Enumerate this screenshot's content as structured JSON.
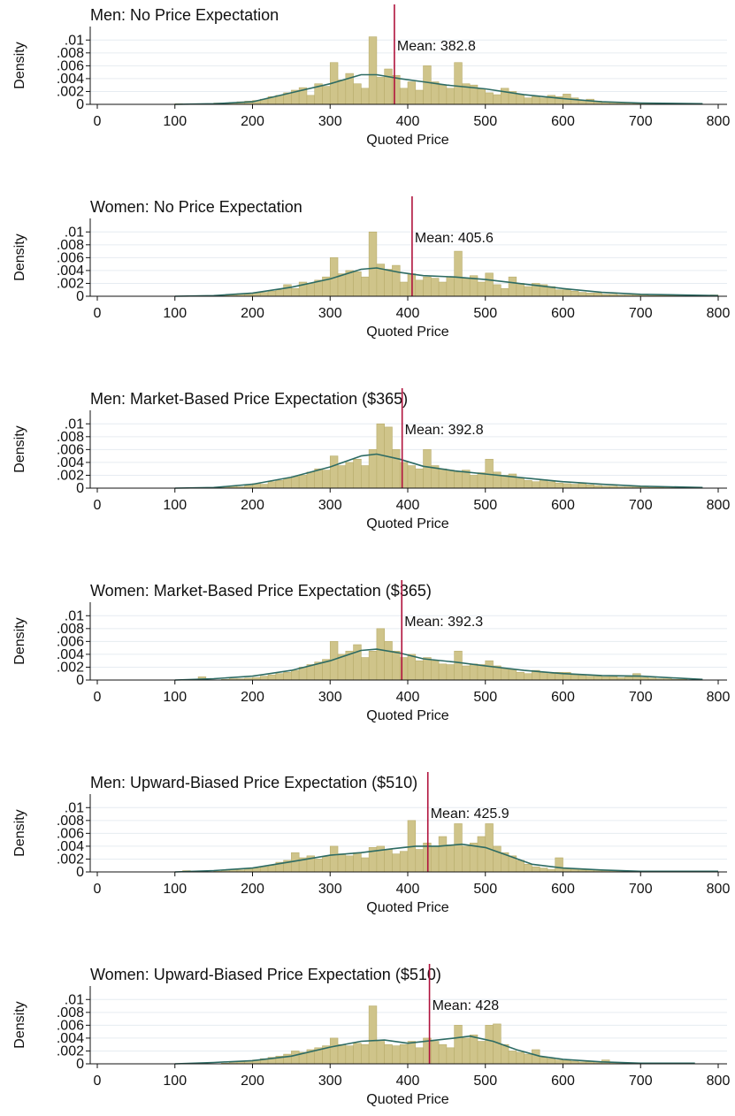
{
  "colors": {
    "bar_fill": "#cfc48a",
    "bar_stroke": "#b9ad6c",
    "density_line": "#2d6b63",
    "mean_line": "#b0123c",
    "grid": "#e6ecf1",
    "axis": "#111111"
  },
  "chart_data": [
    {
      "type": "histogram",
      "title": "Men: No Price Expectation",
      "xlabel": "Quoted Price",
      "ylabel": "Density",
      "xlim": [
        0,
        800
      ],
      "ylim": [
        0,
        0.011
      ],
      "xticks": [
        0,
        100,
        200,
        300,
        400,
        500,
        600,
        700,
        800
      ],
      "xtick_labels": [
        "0",
        "100",
        "200",
        "300",
        "400",
        "500",
        "600",
        "700",
        "800"
      ],
      "yticks": [
        0,
        0.002,
        0.004,
        0.006,
        0.008,
        0.01
      ],
      "ytick_labels": [
        "0",
        ".002",
        ".004",
        ".006",
        ".008",
        ".01"
      ],
      "mean": 382.8,
      "mean_label": "Mean: 382.8",
      "bin_width": 10,
      "bins_start": 0,
      "density": [
        0,
        0,
        0,
        0,
        0,
        0,
        0,
        0,
        0,
        0,
        0.0001,
        0,
        0.0001,
        0.0001,
        0,
        0.0002,
        0.0001,
        0.0003,
        0.0004,
        0.0005,
        0.0006,
        0.0008,
        0.0012,
        0.0014,
        0.0018,
        0.0022,
        0.0026,
        0.0014,
        0.0032,
        0.0028,
        0.0065,
        0.0038,
        0.0048,
        0.0032,
        0.0025,
        0.0105,
        0.0042,
        0.0055,
        0.0045,
        0.0025,
        0.0035,
        0.0022,
        0.006,
        0.0035,
        0.003,
        0.0025,
        0.0065,
        0.0032,
        0.003,
        0.0024,
        0.0018,
        0.0015,
        0.0025,
        0.002,
        0.0015,
        0.001,
        0.0012,
        0.001,
        0.0014,
        0.0012,
        0.0016,
        0.001,
        0.0006,
        0.0008,
        0.0005,
        0.0003,
        0.0003,
        0.0002,
        0.0002,
        0.0001,
        0.0001,
        0.0001,
        0.0001,
        0.0001,
        0,
        0.0001,
        0,
        0,
        0,
        0
      ],
      "kde": [
        [
          100,
          0
        ],
        [
          150,
          0.0001
        ],
        [
          200,
          0.0004
        ],
        [
          250,
          0.0018
        ],
        [
          300,
          0.0032
        ],
        [
          340,
          0.0046
        ],
        [
          360,
          0.0046
        ],
        [
          390,
          0.004
        ],
        [
          420,
          0.0035
        ],
        [
          450,
          0.003
        ],
        [
          500,
          0.0024
        ],
        [
          550,
          0.0015
        ],
        [
          600,
          0.0009
        ],
        [
          650,
          0.0004
        ],
        [
          700,
          0.0002
        ],
        [
          780,
          0.0001
        ]
      ]
    },
    {
      "type": "histogram",
      "title": "Women: No Price Expectation",
      "xlabel": "Quoted Price",
      "ylabel": "Density",
      "xlim": [
        0,
        800
      ],
      "ylim": [
        0,
        0.011
      ],
      "xticks": [
        0,
        100,
        200,
        300,
        400,
        500,
        600,
        700,
        800
      ],
      "xtick_labels": [
        "0",
        "100",
        "200",
        "300",
        "400",
        "500",
        "600",
        "700",
        "800"
      ],
      "yticks": [
        0,
        0.002,
        0.004,
        0.006,
        0.008,
        0.01
      ],
      "ytick_labels": [
        "0",
        ".002",
        ".004",
        ".006",
        ".008",
        ".01"
      ],
      "mean": 405.6,
      "mean_label": "Mean: 405.6",
      "bin_width": 10,
      "bins_start": 0,
      "density": [
        0,
        0,
        0,
        0,
        0,
        0,
        0,
        0,
        0,
        0,
        0,
        0,
        0,
        0.0001,
        0,
        0,
        0.0001,
        0.0002,
        0.0004,
        0.0003,
        0.0005,
        0.0006,
        0.0008,
        0.001,
        0.0018,
        0.0012,
        0.0022,
        0.002,
        0.0025,
        0.003,
        0.006,
        0.0035,
        0.004,
        0.0038,
        0.003,
        0.01,
        0.005,
        0.0042,
        0.0048,
        0.0022,
        0.0035,
        0.0025,
        0.003,
        0.0028,
        0.0022,
        0.003,
        0.007,
        0.0028,
        0.0032,
        0.0022,
        0.0036,
        0.0018,
        0.0012,
        0.003,
        0.002,
        0.0015,
        0.002,
        0.0018,
        0.0015,
        0.001,
        0.001,
        0.0008,
        0.0006,
        0.0005,
        0.0005,
        0.0003,
        0.0003,
        0.0002,
        0.0002,
        0.0003,
        0.0002,
        0.0001,
        0.0001,
        0.0001,
        0.0001,
        0.0002,
        0,
        0,
        0,
        0.0002
      ],
      "kde": [
        [
          100,
          0
        ],
        [
          150,
          0.0001
        ],
        [
          200,
          0.0005
        ],
        [
          250,
          0.0014
        ],
        [
          300,
          0.0027
        ],
        [
          340,
          0.0042
        ],
        [
          360,
          0.0044
        ],
        [
          390,
          0.0037
        ],
        [
          420,
          0.0032
        ],
        [
          460,
          0.003
        ],
        [
          500,
          0.0026
        ],
        [
          550,
          0.0019
        ],
        [
          600,
          0.0012
        ],
        [
          650,
          0.0006
        ],
        [
          700,
          0.0003
        ],
        [
          800,
          0.0001
        ]
      ]
    },
    {
      "type": "histogram",
      "title": "Men: Market-Based Price Expectation ($365)",
      "xlabel": "Quoted Price",
      "ylabel": "Density",
      "xlim": [
        0,
        800
      ],
      "ylim": [
        0,
        0.011
      ],
      "xticks": [
        0,
        100,
        200,
        300,
        400,
        500,
        600,
        700,
        800
      ],
      "xtick_labels": [
        "0",
        "100",
        "200",
        "300",
        "400",
        "500",
        "600",
        "700",
        "800"
      ],
      "yticks": [
        0,
        0.002,
        0.004,
        0.006,
        0.008,
        0.01
      ],
      "ytick_labels": [
        "0",
        ".002",
        ".004",
        ".006",
        ".008",
        ".01"
      ],
      "mean": 392.8,
      "mean_label": "Mean: 392.8",
      "bin_width": 10,
      "bins_start": 0,
      "density": [
        0,
        0,
        0,
        0,
        0,
        0,
        0,
        0,
        0,
        0,
        0,
        0,
        0.0001,
        0,
        0.0001,
        0.0001,
        0.0002,
        0.0003,
        0.0002,
        0.0004,
        0.0007,
        0.0006,
        0.001,
        0.0012,
        0.0015,
        0.0018,
        0.002,
        0.0025,
        0.003,
        0.0028,
        0.005,
        0.0035,
        0.004,
        0.0045,
        0.0035,
        0.006,
        0.01,
        0.0095,
        0.006,
        0.004,
        0.0035,
        0.003,
        0.006,
        0.0035,
        0.003,
        0.0028,
        0.0025,
        0.0028,
        0.002,
        0.0024,
        0.0045,
        0.0025,
        0.002,
        0.0022,
        0.0015,
        0.0012,
        0.001,
        0.0013,
        0.001,
        0.0008,
        0.0007,
        0.0006,
        0.0008,
        0.0005,
        0.0004,
        0.0003,
        0.0003,
        0.0002,
        0.0002,
        0.0002,
        0.0002,
        0.0001,
        0.0001,
        0.0002,
        0.0001,
        0.0001,
        0,
        0,
        0,
        0
      ],
      "kde": [
        [
          100,
          0
        ],
        [
          150,
          0.0001
        ],
        [
          200,
          0.0006
        ],
        [
          250,
          0.0017
        ],
        [
          300,
          0.0033
        ],
        [
          340,
          0.005
        ],
        [
          360,
          0.0053
        ],
        [
          390,
          0.0045
        ],
        [
          420,
          0.0034
        ],
        [
          460,
          0.0027
        ],
        [
          500,
          0.0022
        ],
        [
          550,
          0.0016
        ],
        [
          600,
          0.001
        ],
        [
          650,
          0.0006
        ],
        [
          700,
          0.0003
        ],
        [
          780,
          0.0001
        ]
      ]
    },
    {
      "type": "histogram",
      "title": "Women: Market-Based Price Expectation ($365)",
      "xlabel": "Quoted Price",
      "ylabel": "Density",
      "xlim": [
        0,
        800
      ],
      "ylim": [
        0,
        0.011
      ],
      "xticks": [
        0,
        100,
        200,
        300,
        400,
        500,
        600,
        700,
        800
      ],
      "xtick_labels": [
        "0",
        "100",
        "200",
        "300",
        "400",
        "500",
        "600",
        "700",
        "800"
      ],
      "yticks": [
        0,
        0.002,
        0.004,
        0.006,
        0.008,
        0.01
      ],
      "ytick_labels": [
        "0",
        ".002",
        ".004",
        ".006",
        ".008",
        ".01"
      ],
      "mean": 392.3,
      "mean_label": "Mean: 392.3",
      "bin_width": 10,
      "bins_start": 0,
      "density": [
        0,
        0,
        0,
        0,
        0,
        0,
        0,
        0,
        0,
        0,
        0,
        0,
        0,
        0.0005,
        0,
        0,
        0.0001,
        0.0002,
        0.0002,
        0.0003,
        0.0004,
        0.0006,
        0.0008,
        0.001,
        0.0012,
        0.0015,
        0.002,
        0.0024,
        0.0028,
        0.0032,
        0.006,
        0.004,
        0.0045,
        0.0055,
        0.0035,
        0.0045,
        0.008,
        0.006,
        0.0045,
        0.0035,
        0.004,
        0.003,
        0.0035,
        0.003,
        0.0025,
        0.0024,
        0.0045,
        0.0022,
        0.0025,
        0.0024,
        0.003,
        0.0022,
        0.0018,
        0.0016,
        0.0012,
        0.001,
        0.0015,
        0.0012,
        0.001,
        0.0012,
        0.0012,
        0.0008,
        0.0007,
        0.0006,
        0.0006,
        0.0005,
        0.0005,
        0.0004,
        0.0005,
        0.001,
        0.0004,
        0.0003,
        0.0002,
        0.0002,
        0.0001,
        0.0001,
        0,
        0,
        0,
        0
      ],
      "kde": [
        [
          100,
          0
        ],
        [
          150,
          0.0002
        ],
        [
          200,
          0.0006
        ],
        [
          250,
          0.0015
        ],
        [
          300,
          0.003
        ],
        [
          340,
          0.0046
        ],
        [
          360,
          0.0048
        ],
        [
          390,
          0.0042
        ],
        [
          420,
          0.0033
        ],
        [
          460,
          0.0028
        ],
        [
          500,
          0.0022
        ],
        [
          550,
          0.0015
        ],
        [
          600,
          0.001
        ],
        [
          650,
          0.0007
        ],
        [
          700,
          0.0006
        ],
        [
          780,
          0.0001
        ]
      ]
    },
    {
      "type": "histogram",
      "title": "Men: Upward-Biased Price Expectation ($510)",
      "xlabel": "Quoted Price",
      "ylabel": "Density",
      "xlim": [
        0,
        800
      ],
      "ylim": [
        0,
        0.011
      ],
      "xticks": [
        0,
        100,
        200,
        300,
        400,
        500,
        600,
        700,
        800
      ],
      "xtick_labels": [
        "0",
        "100",
        "200",
        "300",
        "400",
        "500",
        "600",
        "700",
        "800"
      ],
      "yticks": [
        0,
        0.002,
        0.004,
        0.006,
        0.008,
        0.01
      ],
      "ytick_labels": [
        "0",
        ".002",
        ".004",
        ".006",
        ".008",
        ".01"
      ],
      "mean": 425.9,
      "mean_label": "Mean: 425.9",
      "bin_width": 10,
      "bins_start": 0,
      "density": [
        0,
        0,
        0,
        0,
        0,
        0,
        0,
        0,
        0,
        0,
        0,
        0.0002,
        0,
        0,
        0,
        0.0001,
        0.0002,
        0.0004,
        0.0003,
        0.0005,
        0.0006,
        0.0008,
        0.001,
        0.0015,
        0.0018,
        0.003,
        0.0022,
        0.0025,
        0.002,
        0.0024,
        0.004,
        0.0028,
        0.0025,
        0.003,
        0.0022,
        0.0038,
        0.004,
        0.0035,
        0.0028,
        0.0032,
        0.008,
        0.0035,
        0.0045,
        0.004,
        0.0055,
        0.0042,
        0.0075,
        0.004,
        0.0045,
        0.0055,
        0.0075,
        0.004,
        0.003,
        0.0025,
        0.0018,
        0.0012,
        0.0008,
        0.0006,
        0.0004,
        0.0022,
        0.0005,
        0.0004,
        0.0003,
        0.0003,
        0.0002,
        0.0002,
        0.0002,
        0.0002,
        0.0001,
        0.0001,
        0.0001,
        0.0001,
        0.0001,
        0.0001,
        0.0001,
        0,
        0,
        0,
        0,
        0
      ],
      "kde": [
        [
          100,
          0
        ],
        [
          150,
          0.0002
        ],
        [
          200,
          0.0006
        ],
        [
          250,
          0.0016
        ],
        [
          300,
          0.0026
        ],
        [
          340,
          0.003
        ],
        [
          380,
          0.0036
        ],
        [
          410,
          0.004
        ],
        [
          440,
          0.004
        ],
        [
          470,
          0.0043
        ],
        [
          500,
          0.0038
        ],
        [
          530,
          0.0025
        ],
        [
          560,
          0.0012
        ],
        [
          600,
          0.0006
        ],
        [
          650,
          0.0003
        ],
        [
          700,
          0.0001
        ],
        [
          800,
          0.0001
        ]
      ]
    },
    {
      "type": "histogram",
      "title": "Women: Upward-Biased Price Expectation ($510)",
      "xlabel": "Quoted Price",
      "ylabel": "Density",
      "xlim": [
        0,
        800
      ],
      "ylim": [
        0,
        0.011
      ],
      "xticks": [
        0,
        100,
        200,
        300,
        400,
        500,
        600,
        700,
        800
      ],
      "xtick_labels": [
        "0",
        "100",
        "200",
        "300",
        "400",
        "500",
        "600",
        "700",
        "800"
      ],
      "yticks": [
        0,
        0.002,
        0.004,
        0.006,
        0.008,
        0.01
      ],
      "ytick_labels": [
        "0",
        ".002",
        ".004",
        ".006",
        ".008",
        ".01"
      ],
      "mean": 428,
      "mean_label": "Mean: 428",
      "bin_width": 10,
      "bins_start": 0,
      "density": [
        0,
        0,
        0,
        0,
        0,
        0,
        0,
        0,
        0,
        0,
        0,
        0,
        0,
        0,
        0,
        0,
        0.0001,
        0.0002,
        0.0003,
        0.0004,
        0.0006,
        0.0008,
        0.001,
        0.0012,
        0.0015,
        0.002,
        0.0018,
        0.0022,
        0.0025,
        0.0028,
        0.004,
        0.003,
        0.0028,
        0.0032,
        0.003,
        0.009,
        0.0035,
        0.003,
        0.0028,
        0.003,
        0.0035,
        0.0025,
        0.004,
        0.0035,
        0.003,
        0.0025,
        0.006,
        0.004,
        0.0045,
        0.0035,
        0.006,
        0.0062,
        0.003,
        0.002,
        0.0018,
        0.0015,
        0.0022,
        0.001,
        0.0008,
        0.0006,
        0.0005,
        0.0004,
        0.0003,
        0.0003,
        0.0002,
        0.0006,
        0.0002,
        0.0002,
        0.0001,
        0.0001,
        0.0001,
        0.0001,
        0.0001,
        0.0001,
        0,
        0,
        0,
        0,
        0,
        0
      ],
      "kde": [
        [
          100,
          0
        ],
        [
          150,
          0.0002
        ],
        [
          200,
          0.0005
        ],
        [
          250,
          0.0012
        ],
        [
          300,
          0.0026
        ],
        [
          340,
          0.0035
        ],
        [
          370,
          0.0037
        ],
        [
          400,
          0.0032
        ],
        [
          430,
          0.0036
        ],
        [
          460,
          0.004
        ],
        [
          480,
          0.0043
        ],
        [
          510,
          0.0035
        ],
        [
          540,
          0.0022
        ],
        [
          570,
          0.0012
        ],
        [
          600,
          0.0007
        ],
        [
          650,
          0.0003
        ],
        [
          700,
          0.0001
        ],
        [
          770,
          0.0001
        ]
      ]
    }
  ]
}
